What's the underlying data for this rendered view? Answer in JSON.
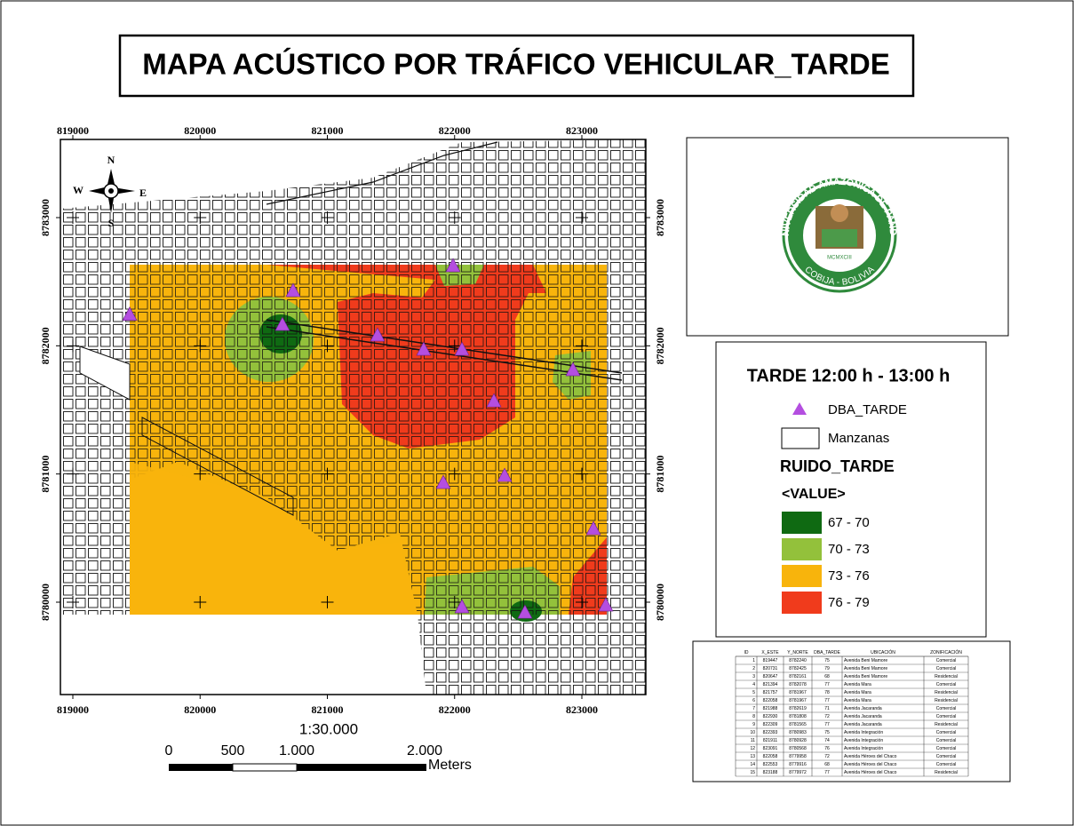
{
  "title": "MAPA ACÚSTICO POR TRÁFICO VEHICULAR_TARDE",
  "map": {
    "x_labels": [
      819000,
      820000,
      821000,
      822000,
      823000
    ],
    "y_labels": [
      8783000,
      8782000,
      8781000,
      8780000
    ],
    "north_arrow": {
      "n": "N",
      "s": "S",
      "e": "E",
      "w": "W"
    },
    "scale_text": "1:30.000",
    "scale_bar": {
      "labels": [
        "0",
        "500",
        "1.000",
        "2.000"
      ],
      "unit": "Meters"
    }
  },
  "logo": {
    "top": "UNIVERSIDAD AMAZÓNICA DE PANDO",
    "bottom": "COBIJA - BOLIVIA",
    "year": "MCMXCIII"
  },
  "legend": {
    "title": "TARDE 12:00 h - 13:00 h",
    "points": "DBA_TARDE",
    "polygons": "Manzanas",
    "raster": "RUIDO_TARDE",
    "field": "<VALUE>",
    "classes": [
      {
        "label": "67 - 70",
        "color": "#0f6a12"
      },
      {
        "label": "70 - 73",
        "color": "#93c13b"
      },
      {
        "label": "73 - 76",
        "color": "#f8b40c"
      },
      {
        "label": "76 - 79",
        "color": "#f03b1c"
      }
    ],
    "point_color": "#b44ee0"
  },
  "table": {
    "header": [
      "ID",
      "X_ESTE",
      "Y_NORTE",
      "DBA_TARDE",
      "UBICACIÓN",
      "ZONIFICACIÓN"
    ],
    "rows": [
      [
        1,
        819447,
        8782240,
        75,
        "Avenida Beni Mamore",
        "Comercial"
      ],
      [
        2,
        820731,
        8782425,
        79,
        "Avenida Beni Mamore",
        "Comercial"
      ],
      [
        3,
        820647,
        8782161,
        68,
        "Avenida Beni Mamore",
        "Residencial"
      ],
      [
        4,
        821394,
        8782078,
        77,
        "Avenida Mara",
        "Comercial"
      ],
      [
        5,
        821757,
        8781967,
        78,
        "Avenida Mara",
        "Residencial"
      ],
      [
        6,
        822058,
        8781967,
        77,
        "Avenida Mara",
        "Residencial"
      ],
      [
        7,
        821988,
        8782619,
        71,
        "Avenida Jacaranda",
        "Comercial"
      ],
      [
        8,
        822930,
        8781808,
        72,
        "Avenida Jacaranda",
        "Comercial"
      ],
      [
        9,
        822309,
        8781565,
        77,
        "Avenida Jacaranda",
        "Residencial"
      ],
      [
        10,
        822393,
        8780983,
        75,
        "Avenida Integración",
        "Comercial"
      ],
      [
        11,
        821911,
        8780928,
        74,
        "Avenida Integración",
        "Comercial"
      ],
      [
        12,
        823091,
        8780568,
        76,
        "Avenida Integración",
        "Comercial"
      ],
      [
        13,
        822058,
        8779958,
        72,
        "Avenida Héroes del Chaco",
        "Comercial"
      ],
      [
        14,
        822553,
        8779916,
        68,
        "Avenida Héroes del Chaco",
        "Comercial"
      ],
      [
        15,
        823188,
        8779972,
        77,
        "Avenida Héroes del Chaco",
        "Residencial"
      ]
    ]
  }
}
